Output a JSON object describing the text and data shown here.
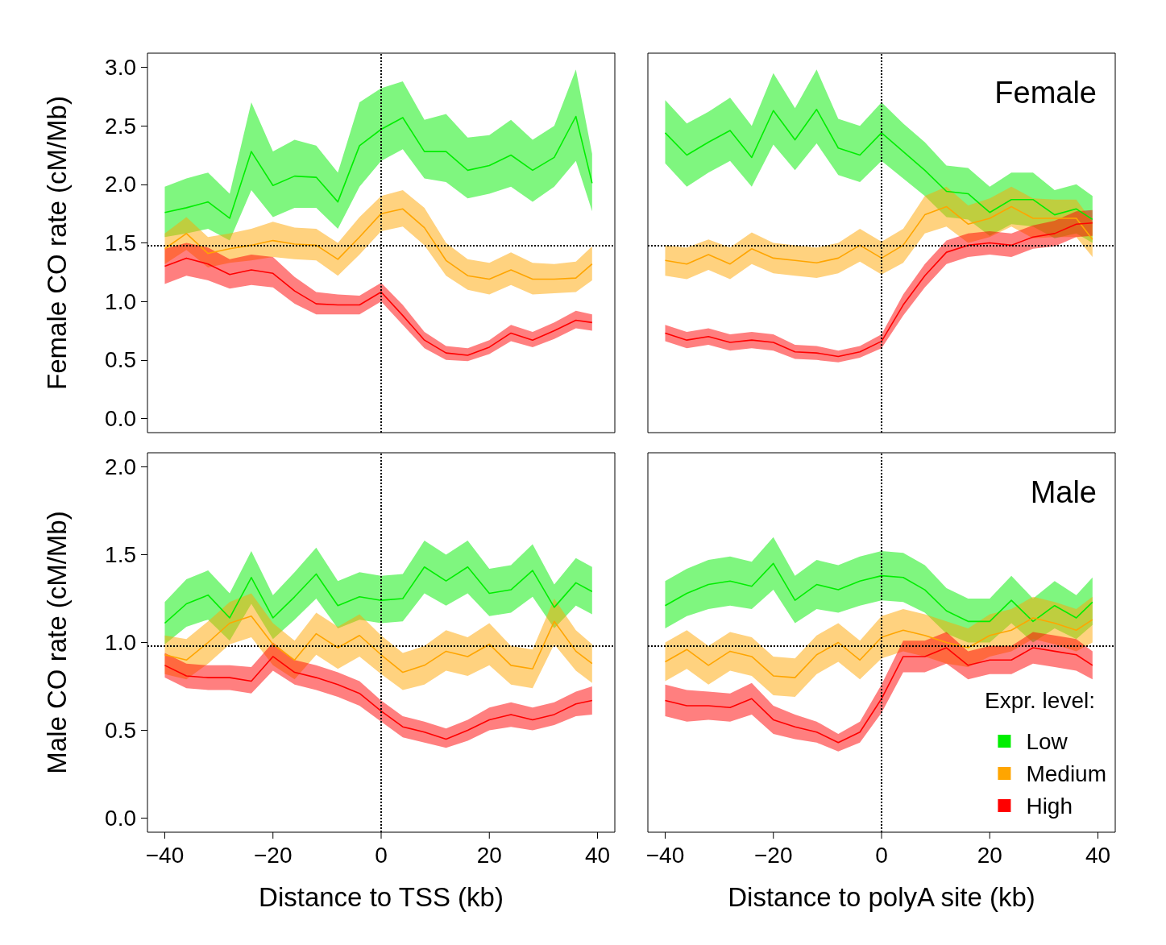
{
  "chart_data": [
    {
      "type": "line",
      "ylabel": "Female CO rate (cM/Mb)",
      "tick_labels": "y",
      "x": [
        -40,
        -36,
        -32,
        -28,
        -24,
        -20,
        -16,
        -12,
        -8,
        -4,
        0,
        4,
        8,
        12,
        16,
        20,
        24,
        28,
        32,
        36,
        39
      ],
      "xlim": [
        -43.2,
        43.2
      ],
      "ylim": [
        -0.12,
        3.12
      ],
      "yticks": [
        {
          "value": 0,
          "label": "0.0"
        },
        0.5,
        {
          "value": 1,
          "label": "1.0"
        },
        1.5,
        {
          "value": 2,
          "label": "2.0"
        },
        2.5,
        {
          "value": 3,
          "label": "3.0"
        }
      ],
      "ref_lines": [
        {
          "axis": "x",
          "value": 0,
          "line_style": "dotted",
          "color": "#000000"
        },
        {
          "axis": "y",
          "value": 1.48,
          "line_style": "dotted",
          "color": "#000000"
        }
      ],
      "series": [
        {
          "color": "#00ee00",
          "values": [
            1.76,
            1.8,
            1.85,
            1.71,
            2.28,
            1.99,
            2.07,
            2.06,
            1.85,
            2.33,
            2.47,
            2.57,
            2.28,
            2.28,
            2.12,
            2.16,
            2.25,
            2.12,
            2.23,
            2.58,
            2.01
          ],
          "lower": [
            1.55,
            1.58,
            1.62,
            1.52,
            1.95,
            1.72,
            1.8,
            1.8,
            1.62,
            1.98,
            2.2,
            2.3,
            2.05,
            2.02,
            1.88,
            1.92,
            1.98,
            1.85,
            1.98,
            2.2,
            1.77
          ],
          "upper": [
            1.98,
            2.05,
            2.1,
            1.92,
            2.7,
            2.28,
            2.38,
            2.33,
            2.1,
            2.7,
            2.82,
            2.88,
            2.55,
            2.6,
            2.4,
            2.42,
            2.55,
            2.38,
            2.5,
            2.98,
            2.26
          ]
        },
        {
          "color": "#ffa500",
          "values": [
            1.45,
            1.58,
            1.41,
            1.45,
            1.48,
            1.52,
            1.49,
            1.48,
            1.36,
            1.55,
            1.75,
            1.79,
            1.63,
            1.35,
            1.22,
            1.19,
            1.27,
            1.19,
            1.19,
            1.2,
            1.32
          ],
          "lower": [
            1.32,
            1.44,
            1.29,
            1.33,
            1.35,
            1.38,
            1.36,
            1.35,
            1.22,
            1.4,
            1.6,
            1.64,
            1.48,
            1.22,
            1.1,
            1.06,
            1.14,
            1.06,
            1.07,
            1.08,
            1.18
          ],
          "upper": [
            1.58,
            1.72,
            1.55,
            1.58,
            1.62,
            1.68,
            1.63,
            1.62,
            1.5,
            1.72,
            1.9,
            1.95,
            1.8,
            1.5,
            1.36,
            1.33,
            1.42,
            1.33,
            1.32,
            1.34,
            1.47
          ]
        },
        {
          "color": "#ff0000",
          "values": [
            1.3,
            1.37,
            1.32,
            1.23,
            1.27,
            1.24,
            1.09,
            0.98,
            0.97,
            0.97,
            1.08,
            0.88,
            0.67,
            0.56,
            0.54,
            0.61,
            0.73,
            0.67,
            0.75,
            0.84,
            0.82
          ],
          "lower": [
            1.15,
            1.22,
            1.18,
            1.11,
            1.14,
            1.12,
            0.98,
            0.89,
            0.89,
            0.89,
            1.0,
            0.8,
            0.6,
            0.5,
            0.49,
            0.55,
            0.66,
            0.61,
            0.68,
            0.77,
            0.75
          ],
          "upper": [
            1.45,
            1.5,
            1.46,
            1.36,
            1.4,
            1.38,
            1.21,
            1.08,
            1.06,
            1.05,
            1.16,
            0.97,
            0.74,
            0.62,
            0.6,
            0.67,
            0.8,
            0.74,
            0.82,
            0.92,
            0.89
          ]
        }
      ]
    },
    {
      "type": "line",
      "title": "Female",
      "tick_labels": false,
      "x": [
        -40,
        -36,
        -32,
        -28,
        -24,
        -20,
        -16,
        -12,
        -8,
        -4,
        0,
        4,
        8,
        12,
        16,
        20,
        24,
        28,
        32,
        36,
        39
      ],
      "xlim": [
        -43.2,
        43.2
      ],
      "ylim": [
        -0.12,
        3.12
      ],
      "ref_lines": [
        {
          "axis": "x",
          "value": 0,
          "line_style": "dotted",
          "color": "#000000"
        },
        {
          "axis": "y",
          "value": 1.48,
          "line_style": "dotted",
          "color": "#000000"
        }
      ],
      "series": [
        {
          "color": "#00ee00",
          "values": [
            2.44,
            2.25,
            2.36,
            2.46,
            2.23,
            2.63,
            2.38,
            2.64,
            2.31,
            2.25,
            2.44,
            2.28,
            2.12,
            1.94,
            1.92,
            1.76,
            1.87,
            1.87,
            1.74,
            1.79,
            1.7
          ],
          "lower": [
            2.18,
            1.98,
            2.1,
            2.2,
            1.98,
            2.34,
            2.12,
            2.35,
            2.08,
            2.02,
            2.2,
            2.05,
            1.9,
            1.72,
            1.7,
            1.56,
            1.66,
            1.64,
            1.54,
            1.58,
            1.5
          ],
          "upper": [
            2.72,
            2.52,
            2.62,
            2.74,
            2.5,
            2.95,
            2.65,
            2.98,
            2.56,
            2.5,
            2.7,
            2.52,
            2.36,
            2.16,
            2.14,
            1.98,
            2.1,
            2.1,
            1.95,
            2.0,
            1.9
          ]
        },
        {
          "color": "#ffa500",
          "values": [
            1.35,
            1.32,
            1.4,
            1.32,
            1.45,
            1.37,
            1.35,
            1.33,
            1.37,
            1.48,
            1.37,
            1.48,
            1.74,
            1.81,
            1.66,
            1.71,
            1.81,
            1.71,
            1.71,
            1.71,
            1.53
          ],
          "lower": [
            1.22,
            1.19,
            1.27,
            1.19,
            1.32,
            1.24,
            1.22,
            1.2,
            1.24,
            1.34,
            1.23,
            1.33,
            1.58,
            1.64,
            1.5,
            1.55,
            1.64,
            1.54,
            1.55,
            1.55,
            1.38
          ],
          "upper": [
            1.48,
            1.46,
            1.53,
            1.46,
            1.59,
            1.5,
            1.48,
            1.46,
            1.5,
            1.62,
            1.51,
            1.62,
            1.9,
            1.98,
            1.82,
            1.88,
            1.98,
            1.88,
            1.87,
            1.87,
            1.68
          ]
        },
        {
          "color": "#ff0000",
          "values": [
            0.73,
            0.67,
            0.7,
            0.65,
            0.67,
            0.65,
            0.57,
            0.56,
            0.53,
            0.57,
            0.66,
            0.97,
            1.22,
            1.42,
            1.48,
            1.5,
            1.48,
            1.55,
            1.58,
            1.66,
            1.67
          ],
          "lower": [
            0.66,
            0.6,
            0.63,
            0.58,
            0.6,
            0.58,
            0.51,
            0.5,
            0.48,
            0.52,
            0.6,
            0.88,
            1.12,
            1.32,
            1.38,
            1.4,
            1.38,
            1.45,
            1.47,
            1.55,
            1.56
          ],
          "upper": [
            0.8,
            0.74,
            0.77,
            0.72,
            0.74,
            0.72,
            0.63,
            0.62,
            0.58,
            0.62,
            0.72,
            1.06,
            1.32,
            1.52,
            1.58,
            1.6,
            1.58,
            1.65,
            1.69,
            1.77,
            1.78
          ]
        }
      ]
    },
    {
      "type": "line",
      "ylabel": "Male CO rate (cM/Mb)",
      "xlabel": "Distance to TSS (kb)",
      "x": [
        -40,
        -36,
        -32,
        -28,
        -24,
        -20,
        -16,
        -12,
        -8,
        -4,
        0,
        4,
        8,
        12,
        16,
        20,
        24,
        28,
        32,
        36,
        39
      ],
      "xlim": [
        -43.2,
        43.2
      ],
      "xticks": [
        -40,
        -20,
        0,
        20,
        40
      ],
      "ylim": [
        -0.08,
        2.08
      ],
      "yticks": [
        {
          "value": 0,
          "label": "0.0"
        },
        0.5,
        {
          "value": 1,
          "label": "1.0"
        },
        1.5,
        {
          "value": 2,
          "label": "2.0"
        }
      ],
      "ref_lines": [
        {
          "axis": "x",
          "value": 0,
          "line_style": "dotted",
          "color": "#000000"
        },
        {
          "axis": "y",
          "value": 0.98,
          "line_style": "dotted",
          "color": "#000000"
        }
      ],
      "series": [
        {
          "color": "#00ee00",
          "values": [
            1.11,
            1.22,
            1.27,
            1.14,
            1.37,
            1.14,
            1.26,
            1.39,
            1.21,
            1.26,
            1.24,
            1.25,
            1.43,
            1.35,
            1.43,
            1.28,
            1.3,
            1.41,
            1.2,
            1.34,
            1.29
          ],
          "lower": [
            0.99,
            1.09,
            1.13,
            1.01,
            1.22,
            1.02,
            1.13,
            1.25,
            1.08,
            1.13,
            1.11,
            1.12,
            1.28,
            1.21,
            1.28,
            1.15,
            1.17,
            1.26,
            1.08,
            1.21,
            1.16
          ],
          "upper": [
            1.23,
            1.36,
            1.41,
            1.28,
            1.52,
            1.27,
            1.4,
            1.54,
            1.35,
            1.4,
            1.38,
            1.39,
            1.58,
            1.5,
            1.58,
            1.42,
            1.44,
            1.56,
            1.33,
            1.48,
            1.43
          ]
        },
        {
          "color": "#ffa500",
          "values": [
            0.93,
            0.9,
            1.0,
            1.11,
            1.15,
            0.99,
            0.9,
            1.05,
            0.97,
            1.04,
            0.93,
            0.83,
            0.87,
            0.95,
            0.92,
            0.99,
            0.87,
            0.85,
            1.12,
            0.95,
            0.88
          ],
          "lower": [
            0.82,
            0.79,
            0.88,
            0.99,
            1.03,
            0.87,
            0.79,
            0.93,
            0.85,
            0.92,
            0.82,
            0.73,
            0.76,
            0.84,
            0.81,
            0.87,
            0.76,
            0.74,
            0.99,
            0.84,
            0.77
          ],
          "upper": [
            1.04,
            1.02,
            1.12,
            1.23,
            1.28,
            1.11,
            1.01,
            1.17,
            1.09,
            1.16,
            1.04,
            0.94,
            0.98,
            1.07,
            1.03,
            1.11,
            0.98,
            0.96,
            1.25,
            1.07,
            0.99
          ]
        },
        {
          "color": "#ff0000",
          "values": [
            0.87,
            0.81,
            0.8,
            0.8,
            0.78,
            0.92,
            0.83,
            0.8,
            0.76,
            0.71,
            0.61,
            0.52,
            0.49,
            0.45,
            0.5,
            0.56,
            0.59,
            0.56,
            0.59,
            0.65,
            0.67
          ],
          "lower": [
            0.8,
            0.74,
            0.73,
            0.73,
            0.71,
            0.84,
            0.76,
            0.73,
            0.69,
            0.64,
            0.55,
            0.46,
            0.43,
            0.4,
            0.44,
            0.5,
            0.52,
            0.5,
            0.53,
            0.58,
            0.59
          ],
          "upper": [
            0.94,
            0.88,
            0.87,
            0.87,
            0.86,
            1.0,
            0.9,
            0.87,
            0.83,
            0.78,
            0.67,
            0.58,
            0.55,
            0.51,
            0.56,
            0.63,
            0.66,
            0.63,
            0.66,
            0.72,
            0.75
          ]
        }
      ]
    },
    {
      "type": "line",
      "title": "Male",
      "xlabel": "Distance to polyA site (kb)",
      "tick_labels": "x",
      "legend": "bottom right",
      "legend_title": "Expr. level:",
      "x": [
        -40,
        -36,
        -32,
        -28,
        -24,
        -20,
        -16,
        -12,
        -8,
        -4,
        0,
        4,
        8,
        12,
        16,
        20,
        24,
        28,
        32,
        36,
        39
      ],
      "xlim": [
        -43.2,
        43.2
      ],
      "xticks": [
        -40,
        -20,
        0,
        20,
        40
      ],
      "ylim": [
        -0.08,
        2.08
      ],
      "ref_lines": [
        {
          "axis": "x",
          "value": 0,
          "line_style": "dotted",
          "color": "#000000"
        },
        {
          "axis": "y",
          "value": 0.98,
          "line_style": "dotted",
          "color": "#000000"
        }
      ],
      "series": [
        {
          "name": "Low",
          "color": "#00ee00",
          "values": [
            1.21,
            1.28,
            1.33,
            1.35,
            1.32,
            1.45,
            1.24,
            1.33,
            1.3,
            1.35,
            1.38,
            1.37,
            1.3,
            1.18,
            1.12,
            1.12,
            1.24,
            1.12,
            1.21,
            1.14,
            1.23
          ],
          "lower": [
            1.08,
            1.15,
            1.19,
            1.21,
            1.19,
            1.3,
            1.11,
            1.19,
            1.17,
            1.21,
            1.24,
            1.23,
            1.17,
            1.05,
            1.0,
            1.0,
            1.11,
            1.0,
            1.08,
            1.02,
            1.1
          ],
          "upper": [
            1.35,
            1.42,
            1.47,
            1.49,
            1.46,
            1.6,
            1.38,
            1.47,
            1.44,
            1.49,
            1.52,
            1.51,
            1.44,
            1.31,
            1.25,
            1.25,
            1.38,
            1.25,
            1.35,
            1.27,
            1.37
          ]
        },
        {
          "name": "Medium",
          "color": "#ffa500",
          "values": [
            0.89,
            0.96,
            0.87,
            0.95,
            0.92,
            0.81,
            0.8,
            0.93,
            1.0,
            0.9,
            1.03,
            1.07,
            1.04,
            1.0,
            0.97,
            1.04,
            1.07,
            1.14,
            1.11,
            1.07,
            1.13
          ],
          "lower": [
            0.78,
            0.85,
            0.76,
            0.84,
            0.81,
            0.7,
            0.69,
            0.82,
            0.89,
            0.79,
            0.91,
            0.95,
            0.92,
            0.88,
            0.86,
            0.92,
            0.95,
            1.02,
            0.99,
            0.95,
            1.0
          ],
          "upper": [
            1.0,
            1.07,
            0.98,
            1.06,
            1.03,
            0.92,
            0.91,
            1.04,
            1.11,
            1.01,
            1.15,
            1.19,
            1.16,
            1.12,
            1.08,
            1.16,
            1.19,
            1.26,
            1.23,
            1.19,
            1.26
          ]
        },
        {
          "name": "High",
          "color": "#ff0000",
          "values": [
            0.67,
            0.64,
            0.64,
            0.63,
            0.68,
            0.56,
            0.52,
            0.49,
            0.43,
            0.49,
            0.68,
            0.92,
            0.92,
            0.97,
            0.87,
            0.9,
            0.9,
            0.97,
            0.95,
            0.93,
            0.87
          ],
          "lower": [
            0.58,
            0.55,
            0.56,
            0.55,
            0.59,
            0.48,
            0.45,
            0.43,
            0.38,
            0.43,
            0.6,
            0.83,
            0.83,
            0.88,
            0.79,
            0.82,
            0.82,
            0.88,
            0.86,
            0.84,
            0.79
          ],
          "upper": [
            0.76,
            0.73,
            0.72,
            0.71,
            0.77,
            0.64,
            0.59,
            0.55,
            0.48,
            0.55,
            0.76,
            1.01,
            1.01,
            1.06,
            0.95,
            0.98,
            0.98,
            1.06,
            1.04,
            1.02,
            0.95
          ]
        }
      ]
    }
  ]
}
